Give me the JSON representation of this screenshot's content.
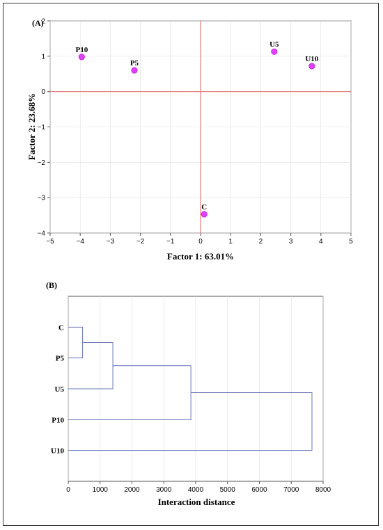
{
  "colors": {
    "point": "#e040fb",
    "zero_line": "#e07070",
    "dendro_line": "#6a74b8",
    "grid": "#dddddd",
    "axis": "#555555"
  },
  "chart_data": [
    {
      "type": "scatter",
      "panel_label": "(A)",
      "xlabel": "Factor 1: 63.01%",
      "ylabel": "Factor 2: 23.68%",
      "xlim": [
        -5,
        5
      ],
      "ylim": [
        -4,
        2
      ],
      "x_ticks": [
        "−5",
        "−4",
        "−3",
        "−2",
        "−1",
        "0",
        "1",
        "2",
        "3",
        "4",
        "5"
      ],
      "y_ticks": [
        "2",
        "1",
        "0",
        "−1",
        "−2",
        "−3",
        "−4"
      ],
      "grid": true,
      "zero_lines": true,
      "points": [
        {
          "label": "P10",
          "x": -3.95,
          "y": 0.98
        },
        {
          "label": "P5",
          "x": -2.2,
          "y": 0.6
        },
        {
          "label": "C",
          "x": 0.12,
          "y": -3.47
        },
        {
          "label": "U5",
          "x": 2.45,
          "y": 1.13
        },
        {
          "label": "U10",
          "x": 3.7,
          "y": 0.72
        }
      ]
    },
    {
      "type": "dendrogram",
      "panel_label": "(B)",
      "xlabel": "Interaction distance",
      "xlim": [
        0,
        8000
      ],
      "x_ticks": [
        "0",
        "1000",
        "2000",
        "3000",
        "4000",
        "5000",
        "6000",
        "7000",
        "8000"
      ],
      "grid": true,
      "leaves": [
        "C",
        "P5",
        "U5",
        "P10",
        "U10"
      ],
      "merges": [
        {
          "a": "C",
          "b": "P5",
          "height": 450
        },
        {
          "a": "C+P5",
          "b": "U5",
          "height": 1400
        },
        {
          "a": "C+P5+U5",
          "b": "P10",
          "height": 3850
        },
        {
          "a": "C+P5+U5+P10",
          "b": "U10",
          "height": 7650
        }
      ]
    }
  ]
}
